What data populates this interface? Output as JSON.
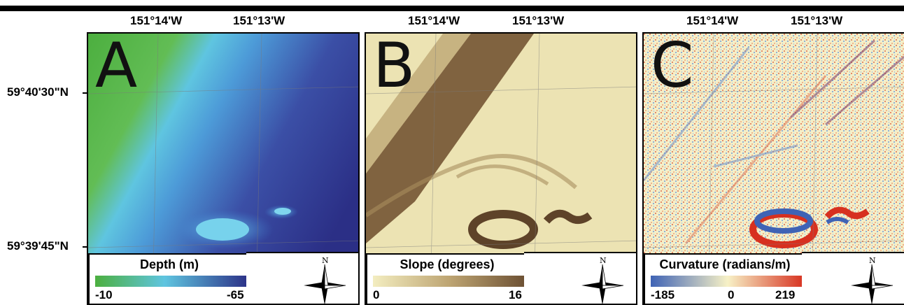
{
  "longitude_labels": [
    "151°14'W",
    "151°13'W"
  ],
  "latitude_labels": [
    "59°40'30\"N",
    "59°39'45\"N"
  ],
  "panels": [
    {
      "letter": "A",
      "legend_title": "Depth (m)",
      "min_label": "-10",
      "max_label": "-65",
      "colors": {
        "low": "#4caf3f",
        "mid": "#5fc5e0",
        "high": "#2b2f86"
      }
    },
    {
      "letter": "B",
      "legend_title": "Slope (degrees)",
      "min_label": "0",
      "max_label": "16",
      "colors": {
        "low": "#f3edc0",
        "mid": "#bda472",
        "high": "#6b4f32"
      }
    },
    {
      "letter": "C",
      "legend_title": "Curvature (radians/m)",
      "min_label": "-185",
      "mid_label": "0",
      "max_label": "219",
      "colors": {
        "low": "#3f63b5",
        "mid": "#f7f1c6",
        "high": "#d7301f"
      }
    }
  ],
  "north_arrow_label": "N",
  "icons": [
    "north-arrow-icon"
  ]
}
